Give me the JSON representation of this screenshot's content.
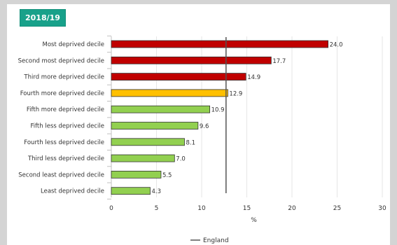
{
  "period_badge": "2018/19",
  "chart_data": {
    "type": "bar",
    "orientation": "horizontal",
    "categories": [
      "Most deprived decile",
      "Second most deprived decile",
      "Third more deprived decile",
      "Fourth more deprived decile",
      "Fifth more deprived decile",
      "Fifth less deprived decile",
      "Fourth less deprived decile",
      "Third less deprived decile",
      "Second least deprived decile",
      "Least deprived decile"
    ],
    "values": [
      24.0,
      17.7,
      14.9,
      12.9,
      10.9,
      9.6,
      8.1,
      7.0,
      5.5,
      4.3
    ],
    "value_labels": [
      "24.0",
      "17.7",
      "14.9",
      "12.9",
      "10.9",
      "9.6",
      "8.1",
      "7.0",
      "5.5",
      "4.3"
    ],
    "bar_colors": [
      "#c00000",
      "#c00000",
      "#c00000",
      "#ffc000",
      "#92d050",
      "#92d050",
      "#92d050",
      "#92d050",
      "#92d050",
      "#92d050"
    ],
    "xlabel": "%",
    "xlim": [
      0,
      30
    ],
    "xticks": [
      "0",
      "5",
      "10",
      "15",
      "20",
      "25",
      "30"
    ],
    "reference_line": {
      "name": "England",
      "value": 12.7,
      "color": "#555555"
    },
    "legend": {
      "label": "England",
      "placement": "bottom"
    },
    "grid": "vertical"
  }
}
